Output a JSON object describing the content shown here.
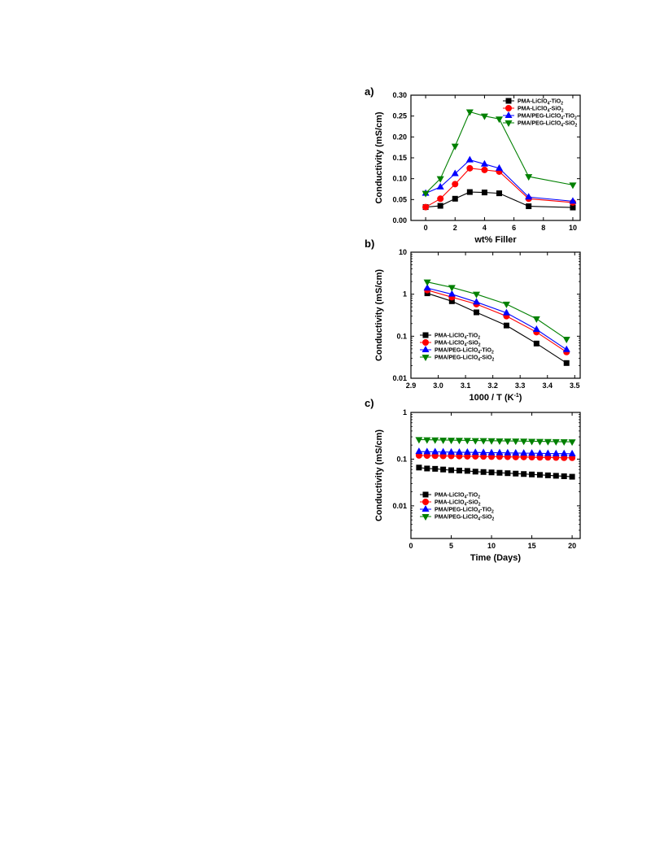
{
  "chart_data": [
    {
      "panel": "a)",
      "type": "line",
      "xlabel": "wt% Filler",
      "ylabel": "Conductivity (mS/cm)",
      "xlim": [
        -1,
        10.5
      ],
      "ylim": [
        0,
        0.3
      ],
      "yscale": "linear",
      "xticks": [
        0,
        2,
        4,
        6,
        8,
        10
      ],
      "xtick_labels": [
        "0",
        "2",
        "4",
        "6",
        "8",
        "10"
      ],
      "yticks": [
        0,
        0.05,
        0.1,
        0.15,
        0.2,
        0.25,
        0.3
      ],
      "ytick_labels": [
        "0.00",
        "0.05",
        "0.10",
        "0.15",
        "0.20",
        "0.25",
        "0.30"
      ],
      "legend_position": "top-right",
      "series": [
        {
          "name": "PMA-LiClO",
          "sub1": "4",
          "mid": "-TiO",
          "sub2": "2",
          "color": "#000000",
          "marker": "square",
          "x": [
            0,
            1,
            2,
            3,
            4,
            5,
            7,
            10
          ],
          "y": [
            0.032,
            0.035,
            0.052,
            0.068,
            0.067,
            0.065,
            0.034,
            0.031
          ]
        },
        {
          "name": "PMA-LiClO",
          "sub1": "4",
          "mid": "-SiO",
          "sub2": "2",
          "color": "#ff0000",
          "marker": "circle",
          "x": [
            0,
            1,
            2,
            3,
            4,
            5,
            7,
            10
          ],
          "y": [
            0.032,
            0.052,
            0.087,
            0.125,
            0.121,
            0.117,
            0.052,
            0.043
          ]
        },
        {
          "name": "PMA/PEG-LiClO",
          "sub1": "4",
          "mid": "-TiO",
          "sub2": "2",
          "color": "#0000ff",
          "marker": "triangle-up",
          "x": [
            0,
            1,
            2,
            3,
            4,
            5,
            7,
            10
          ],
          "y": [
            0.065,
            0.08,
            0.112,
            0.145,
            0.135,
            0.125,
            0.056,
            0.046
          ]
        },
        {
          "name": "PMA/PEG-LiClO",
          "sub1": "4",
          "mid": "-SiO",
          "sub2": "2",
          "color": "#008000",
          "marker": "triangle-down",
          "x": [
            0,
            1,
            2,
            3,
            4,
            5,
            7,
            10
          ],
          "y": [
            0.065,
            0.1,
            0.178,
            0.26,
            0.25,
            0.243,
            0.105,
            0.085
          ]
        }
      ]
    },
    {
      "panel": "b)",
      "type": "line",
      "xlabel": "1000 / T (K",
      "xlabel_sup": "-1",
      "xlabel_end": ")",
      "ylabel": "Conductivity (mS/cm)",
      "xlim": [
        2.9,
        3.52
      ],
      "ylim": [
        0.01,
        10
      ],
      "yscale": "log",
      "xticks": [
        2.9,
        3.0,
        3.1,
        3.2,
        3.3,
        3.4,
        3.5
      ],
      "xtick_labels": [
        "2.9",
        "3.0",
        "3.1",
        "3.2",
        "3.3",
        "3.4",
        "3.5"
      ],
      "yticks": [
        0.01,
        0.1,
        1,
        10
      ],
      "ytick_labels": [
        "0.01",
        "0.1",
        "1",
        "10"
      ],
      "legend_position": "bottom-left",
      "series": [
        {
          "name": "PMA-LiClO",
          "sub1": "4",
          "mid": "-TiO",
          "sub2": "2",
          "color": "#000000",
          "marker": "square",
          "x": [
            2.96,
            3.05,
            3.14,
            3.25,
            3.36,
            3.47
          ],
          "y": [
            1.05,
            0.68,
            0.37,
            0.18,
            0.067,
            0.023
          ]
        },
        {
          "name": "PMA-LiClO",
          "sub1": "4",
          "mid": "-SiO",
          "sub2": "2",
          "color": "#ff0000",
          "marker": "circle",
          "x": [
            2.96,
            3.05,
            3.14,
            3.25,
            3.36,
            3.47
          ],
          "y": [
            1.25,
            0.85,
            0.58,
            0.3,
            0.125,
            0.042
          ]
        },
        {
          "name": "PMA/PEG-LiClO",
          "sub1": "4",
          "mid": "-TiO",
          "sub2": "2",
          "color": "#0000ff",
          "marker": "triangle-up",
          "x": [
            2.96,
            3.05,
            3.14,
            3.25,
            3.36,
            3.47
          ],
          "y": [
            1.4,
            1.0,
            0.65,
            0.36,
            0.145,
            0.048
          ]
        },
        {
          "name": "PMA/PEG-LiClO",
          "sub1": "4",
          "mid": "-SiO",
          "sub2": "2",
          "color": "#008000",
          "marker": "triangle-down",
          "x": [
            2.96,
            3.05,
            3.14,
            3.25,
            3.36,
            3.47
          ],
          "y": [
            1.95,
            1.45,
            1.0,
            0.58,
            0.26,
            0.085
          ]
        }
      ]
    },
    {
      "panel": "c)",
      "type": "line",
      "xlabel": "Time (Days)",
      "ylabel": "Conductivity (mS/cm)",
      "xlim": [
        0,
        21
      ],
      "ylim": [
        0.002,
        1
      ],
      "yscale": "log",
      "xticks": [
        0,
        5,
        10,
        15,
        20
      ],
      "xtick_labels": [
        "0",
        "5",
        "10",
        "15",
        "20"
      ],
      "yticks": [
        0.01,
        0.1,
        1
      ],
      "ytick_labels": [
        "0.01",
        "0.1",
        "1"
      ],
      "legend_position": "bottom-left",
      "series": [
        {
          "name": "PMA-LiClO",
          "sub1": "4",
          "mid": "-TiO",
          "sub2": "2",
          "color": "#000000",
          "marker": "square",
          "x": [
            1,
            2,
            3,
            4,
            5,
            6,
            7,
            8,
            9,
            10,
            11,
            12,
            13,
            14,
            15,
            16,
            17,
            18,
            19,
            20
          ],
          "y": [
            0.066,
            0.063,
            0.062,
            0.06,
            0.058,
            0.057,
            0.056,
            0.054,
            0.053,
            0.052,
            0.051,
            0.05,
            0.049,
            0.048,
            0.047,
            0.046,
            0.045,
            0.044,
            0.043,
            0.042
          ]
        },
        {
          "name": "PMA-LiClO",
          "sub1": "4",
          "mid": "-SiO",
          "sub2": "2",
          "color": "#ff0000",
          "marker": "circle",
          "x": [
            1,
            2,
            3,
            4,
            5,
            6,
            7,
            8,
            9,
            10,
            11,
            12,
            13,
            14,
            15,
            16,
            17,
            18,
            19,
            20
          ],
          "y": [
            0.12,
            0.119,
            0.118,
            0.117,
            0.117,
            0.116,
            0.115,
            0.115,
            0.114,
            0.113,
            0.113,
            0.112,
            0.111,
            0.111,
            0.11,
            0.109,
            0.109,
            0.108,
            0.107,
            0.107
          ]
        },
        {
          "name": "PMA/PEG-LiClO",
          "sub1": "4",
          "mid": "-TiO",
          "sub2": "2",
          "color": "#0000ff",
          "marker": "triangle-up",
          "x": [
            1,
            2,
            3,
            4,
            5,
            6,
            7,
            8,
            9,
            10,
            11,
            12,
            13,
            14,
            15,
            16,
            17,
            18,
            19,
            20
          ],
          "y": [
            0.145,
            0.144,
            0.143,
            0.142,
            0.141,
            0.14,
            0.14,
            0.139,
            0.138,
            0.137,
            0.137,
            0.136,
            0.135,
            0.134,
            0.134,
            0.133,
            0.132,
            0.131,
            0.131,
            0.13
          ]
        },
        {
          "name": "PMA/PEG-LiClO",
          "sub1": "4",
          "mid": "-SiO",
          "sub2": "2",
          "color": "#008000",
          "marker": "triangle-down",
          "x": [
            1,
            2,
            3,
            4,
            5,
            6,
            7,
            8,
            9,
            10,
            11,
            12,
            13,
            14,
            15,
            16,
            17,
            18,
            19,
            20
          ],
          "y": [
            0.262,
            0.26,
            0.258,
            0.256,
            0.255,
            0.253,
            0.252,
            0.25,
            0.249,
            0.248,
            0.246,
            0.245,
            0.244,
            0.243,
            0.241,
            0.24,
            0.239,
            0.237,
            0.236,
            0.235
          ]
        }
      ]
    }
  ]
}
